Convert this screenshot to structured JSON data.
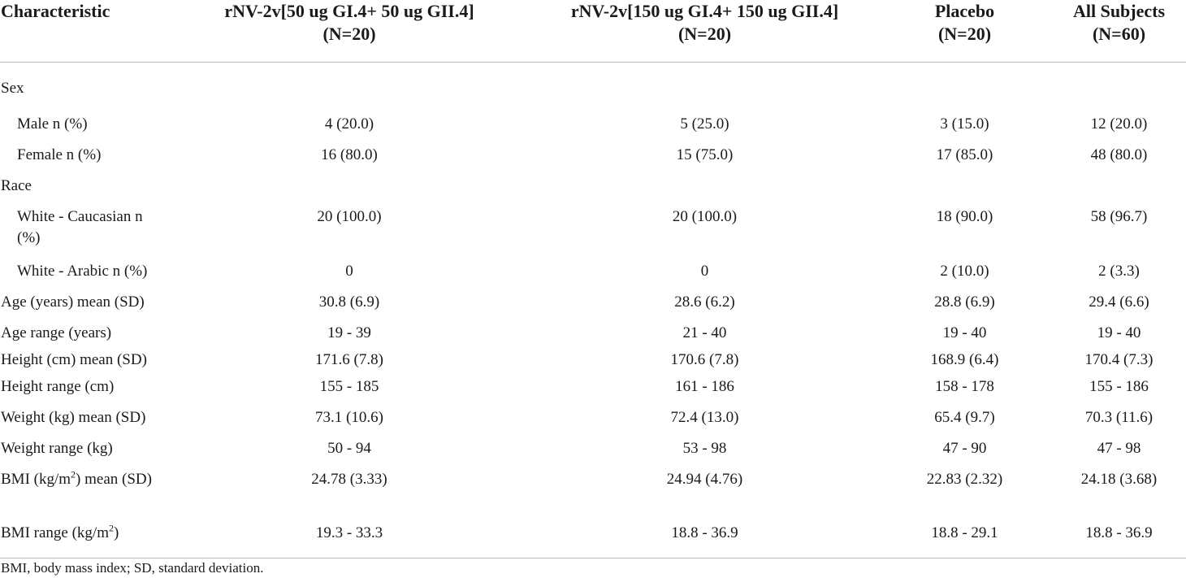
{
  "table": {
    "headers": [
      {
        "line1": "Characteristic",
        "line2": ""
      },
      {
        "line1": "rNV-2v[50 ug GI.4+ 50 ug GII.4]",
        "line2": "(N=20)"
      },
      {
        "line1": "rNV-2v[150 ug GI.4+ 150 ug GII.4]",
        "line2": "(N=20)"
      },
      {
        "line1": "Placebo",
        "line2": "(N=20)"
      },
      {
        "line1": "All Subjects",
        "line2": "(N=60)"
      }
    ],
    "rows": [
      {
        "label": "Sex",
        "indent": false,
        "cells": [
          "",
          "",
          "",
          ""
        ]
      },
      {
        "label": "Male n (%)",
        "indent": true,
        "cells": [
          "4 (20.0)",
          "5 (25.0)",
          "3 (15.0)",
          "12 (20.0)"
        ]
      },
      {
        "label": "Female n (%)",
        "indent": true,
        "cells": [
          "16 (80.0)",
          "15 (75.0)",
          "17 (85.0)",
          "48 (80.0)"
        ]
      },
      {
        "label": "Race",
        "indent": false,
        "cells": [
          "",
          "",
          "",
          ""
        ]
      },
      {
        "label": "White - Caucasian n (%)",
        "indent": true,
        "cells": [
          "20 (100.0)",
          "20 (100.0)",
          "18 (90.0)",
          "58 (96.7)"
        ]
      },
      {
        "label": "White - Arabic n (%)",
        "indent": true,
        "cells": [
          "0",
          "0",
          "2 (10.0)",
          "2 (3.3)"
        ]
      },
      {
        "label": "Age (years) mean (SD)",
        "indent": false,
        "cells": [
          "30.8 (6.9)",
          "28.6 (6.2)",
          "28.8 (6.9)",
          "29.4 (6.6)"
        ]
      },
      {
        "label": "Age range (years)",
        "indent": false,
        "cells": [
          "19 - 39",
          "21 - 40",
          "19 - 40",
          "19 - 40"
        ]
      },
      {
        "label": "Height (cm) mean (SD)",
        "indent": false,
        "cells": [
          "171.6 (7.8)",
          "170.6 (7.8)",
          "168.9 (6.4)",
          "170.4 (7.3)"
        ]
      },
      {
        "label": "Height range (cm)",
        "indent": false,
        "cells": [
          "155 - 185",
          "161 - 186",
          "158 - 178",
          "155 - 186"
        ]
      },
      {
        "label": "Weight (kg) mean (SD)",
        "indent": false,
        "cells": [
          "73.1 (10.6)",
          "72.4 (13.0)",
          "65.4 (9.7)",
          "70.3 (11.6)"
        ]
      },
      {
        "label": "Weight range (kg)",
        "indent": false,
        "cells": [
          "50 - 94",
          "53 - 98",
          "47 - 90",
          "47 - 98"
        ]
      },
      {
        "label": "BMI (kg/m",
        "label_sup": "2",
        "label_after": ") mean (SD)",
        "indent": false,
        "cells": [
          "24.78 (3.33)",
          "24.94 (4.76)",
          "22.83 (2.32)",
          "24.18 (3.68)"
        ]
      },
      {
        "label": "BMI range (kg/m",
        "label_sup": "2",
        "label_after": ")",
        "indent": false,
        "cells": [
          "19.3 - 33.3",
          "18.8 - 36.9",
          "18.8 - 29.1",
          "18.8 - 36.9"
        ]
      }
    ]
  },
  "footnote": "BMI, body mass index; SD, standard deviation."
}
